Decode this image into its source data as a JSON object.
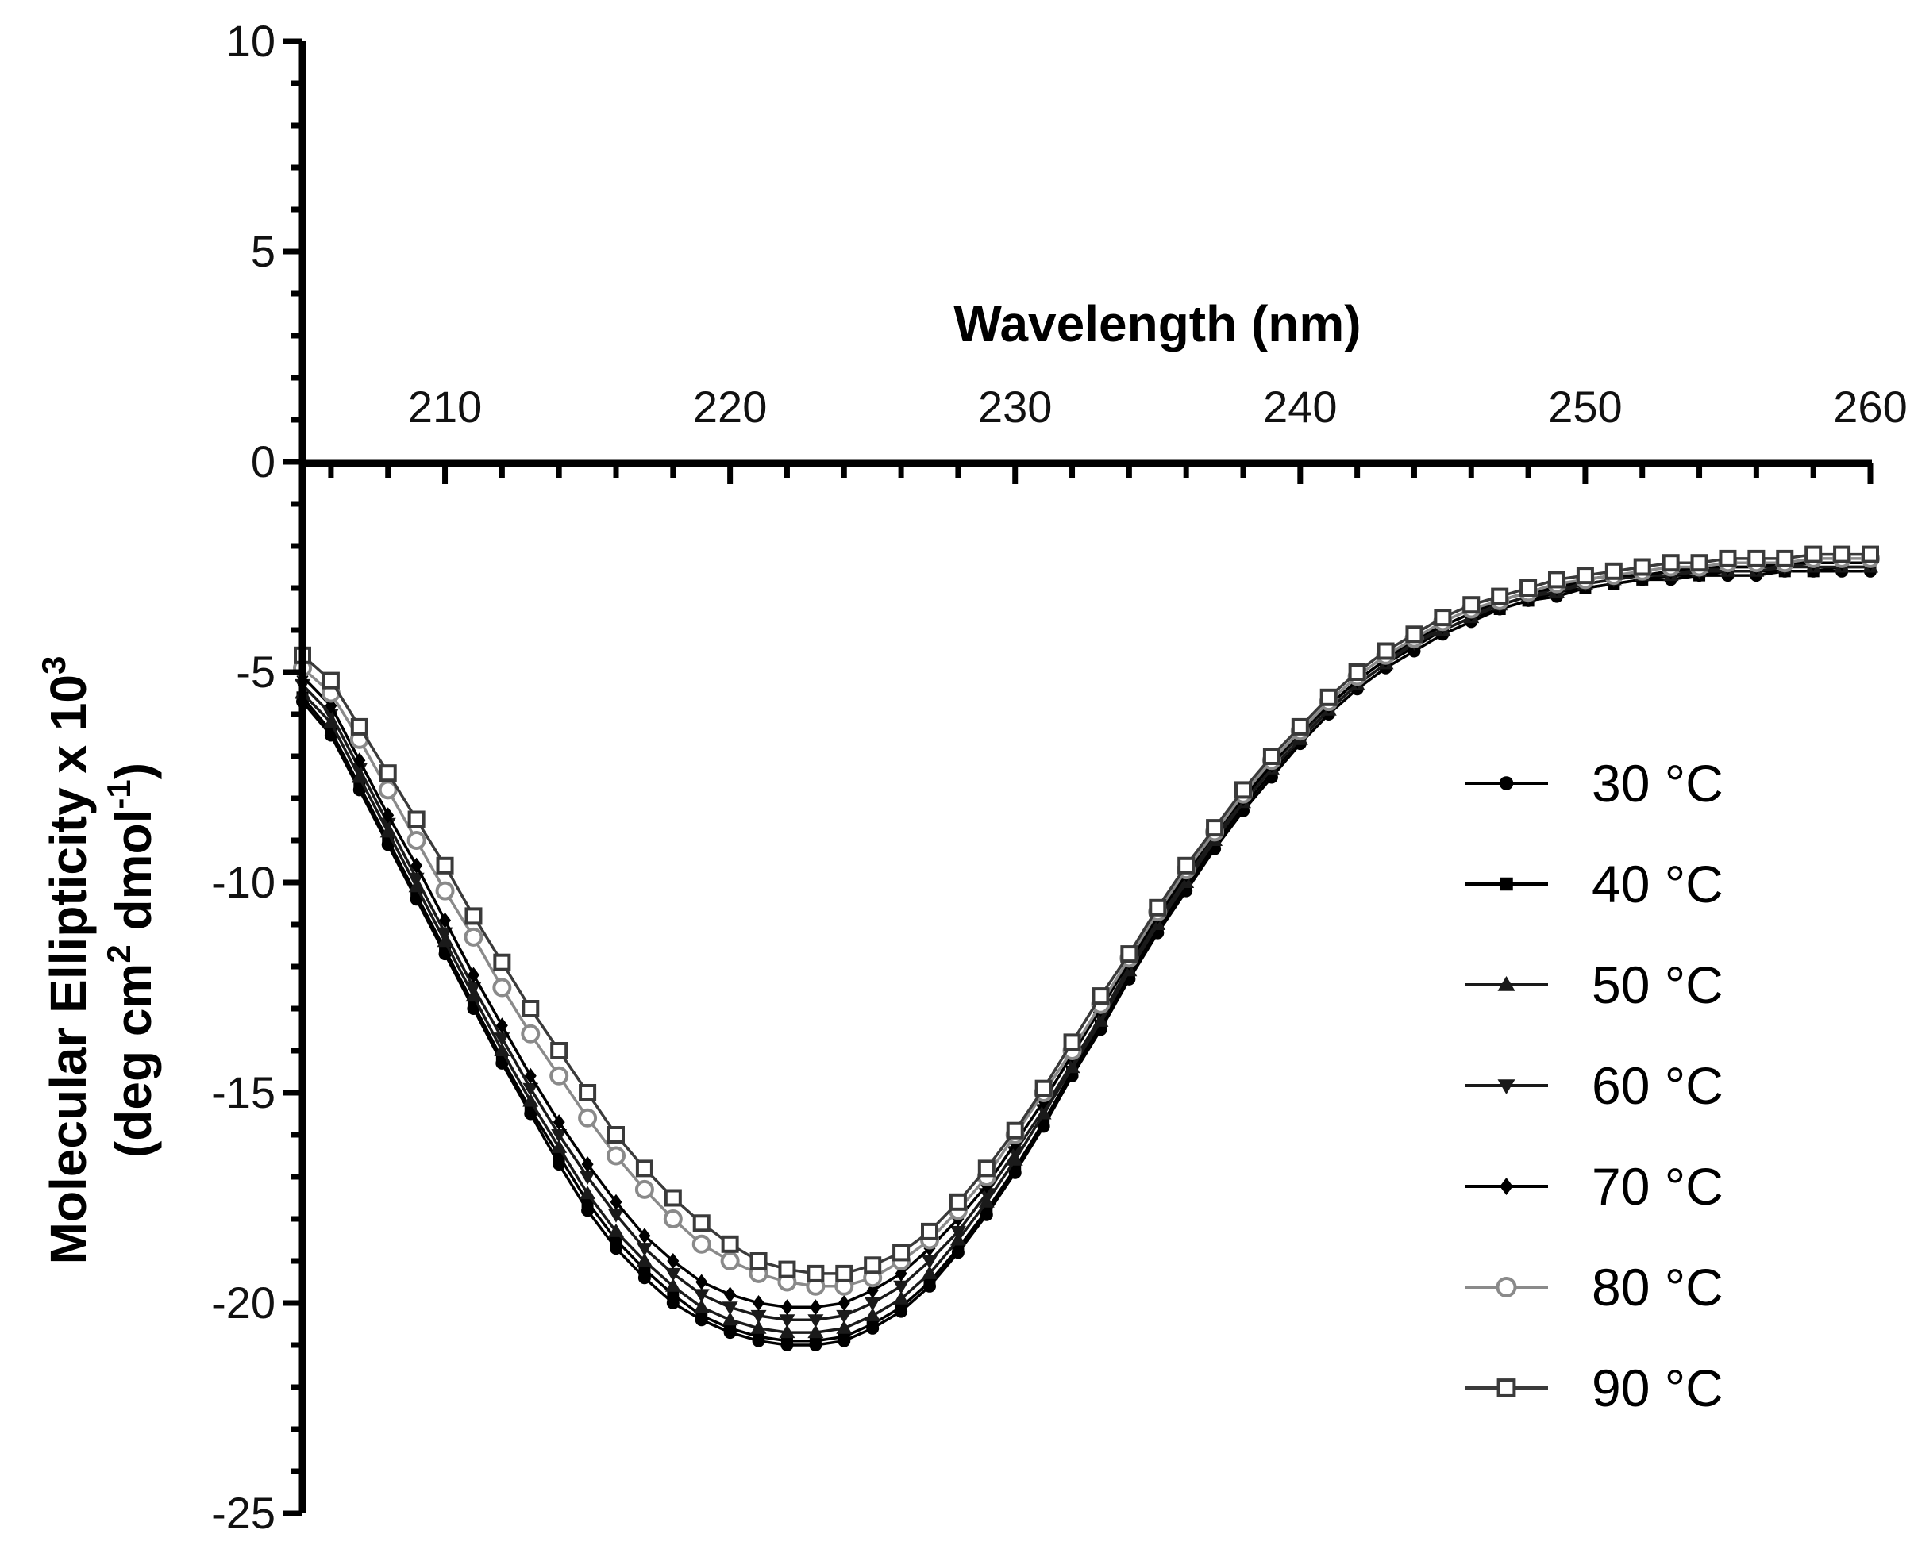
{
  "chart_data": {
    "type": "line",
    "title": "",
    "xlabel": "Wavelength (nm)",
    "ylabel_line1": "Molecular Ellipticity x 10",
    "ylabel_exp": "3",
    "ylabel_line2_a": "(deg cm",
    "ylabel_line2_sup1": "2",
    "ylabel_line2_b": " dmol",
    "ylabel_line2_sup2": "-1",
    "ylabel_line2_c": ")",
    "xlim": [
      205,
      260
    ],
    "ylim": [
      -25,
      10
    ],
    "xticks": [
      210,
      220,
      230,
      240,
      250,
      260
    ],
    "yticks": [
      10,
      5,
      0,
      -5,
      -10,
      -15,
      -20,
      -25
    ],
    "x": [
      205,
      206,
      207,
      208,
      209,
      210,
      211,
      212,
      213,
      214,
      215,
      216,
      217,
      218,
      219,
      220,
      221,
      222,
      223,
      224,
      225,
      226,
      227,
      228,
      229,
      230,
      231,
      232,
      233,
      234,
      235,
      236,
      237,
      238,
      239,
      240,
      241,
      242,
      243,
      244,
      245,
      246,
      247,
      248,
      249,
      250,
      251,
      252,
      253,
      254,
      255,
      256,
      257,
      258,
      259,
      260
    ],
    "series": [
      {
        "name": "30 °C",
        "marker": "circle",
        "values": [
          -5.7,
          -6.5,
          -7.8,
          -9.1,
          -10.4,
          -11.7,
          -13.0,
          -14.3,
          -15.5,
          -16.7,
          -17.8,
          -18.7,
          -19.4,
          -20.0,
          -20.4,
          -20.7,
          -20.9,
          -21.0,
          -21.0,
          -20.9,
          -20.6,
          -20.2,
          -19.6,
          -18.8,
          -17.9,
          -16.9,
          -15.8,
          -14.6,
          -13.5,
          -12.3,
          -11.2,
          -10.2,
          -9.2,
          -8.3,
          -7.5,
          -6.7,
          -6.0,
          -5.4,
          -4.9,
          -4.5,
          -4.1,
          -3.8,
          -3.5,
          -3.3,
          -3.2,
          -3.0,
          -2.9,
          -2.8,
          -2.8,
          -2.7,
          -2.7,
          -2.7,
          -2.6,
          -2.6,
          -2.6,
          -2.6
        ]
      },
      {
        "name": "40 °C",
        "marker": "square-filled",
        "values": [
          -5.6,
          -6.4,
          -7.7,
          -9.0,
          -10.3,
          -11.6,
          -12.9,
          -14.2,
          -15.4,
          -16.5,
          -17.6,
          -18.5,
          -19.2,
          -19.8,
          -20.3,
          -20.6,
          -20.8,
          -20.9,
          -20.9,
          -20.8,
          -20.5,
          -20.1,
          -19.5,
          -18.7,
          -17.8,
          -16.8,
          -15.7,
          -14.5,
          -13.4,
          -12.2,
          -11.1,
          -10.1,
          -9.1,
          -8.2,
          -7.4,
          -6.6,
          -5.9,
          -5.3,
          -4.8,
          -4.4,
          -4.0,
          -3.7,
          -3.5,
          -3.3,
          -3.1,
          -3.0,
          -2.9,
          -2.8,
          -2.7,
          -2.7,
          -2.6,
          -2.6,
          -2.6,
          -2.6,
          -2.5,
          -2.5
        ]
      },
      {
        "name": "50 °C",
        "marker": "triangle-up",
        "values": [
          -5.5,
          -6.2,
          -7.5,
          -8.8,
          -10.1,
          -11.4,
          -12.7,
          -14.0,
          -15.2,
          -16.3,
          -17.4,
          -18.3,
          -19.0,
          -19.6,
          -20.1,
          -20.4,
          -20.6,
          -20.7,
          -20.7,
          -20.6,
          -20.3,
          -19.9,
          -19.3,
          -18.5,
          -17.6,
          -16.6,
          -15.5,
          -14.4,
          -13.3,
          -12.1,
          -11.0,
          -10.0,
          -9.0,
          -8.1,
          -7.3,
          -6.6,
          -5.9,
          -5.3,
          -4.8,
          -4.3,
          -4.0,
          -3.7,
          -3.4,
          -3.2,
          -3.1,
          -2.9,
          -2.8,
          -2.7,
          -2.7,
          -2.6,
          -2.6,
          -2.6,
          -2.5,
          -2.5,
          -2.5,
          -2.5
        ]
      },
      {
        "name": "60 °C",
        "marker": "triangle-down",
        "values": [
          -5.3,
          -6.0,
          -7.3,
          -8.6,
          -9.9,
          -11.2,
          -12.5,
          -13.7,
          -14.9,
          -16.0,
          -17.0,
          -17.9,
          -18.7,
          -19.3,
          -19.8,
          -20.1,
          -20.3,
          -20.4,
          -20.4,
          -20.3,
          -20.0,
          -19.6,
          -19.0,
          -18.3,
          -17.4,
          -16.4,
          -15.4,
          -14.3,
          -13.2,
          -12.0,
          -10.9,
          -9.9,
          -8.9,
          -8.0,
          -7.2,
          -6.5,
          -5.8,
          -5.2,
          -4.7,
          -4.3,
          -3.9,
          -3.6,
          -3.4,
          -3.2,
          -3.0,
          -2.9,
          -2.8,
          -2.7,
          -2.6,
          -2.6,
          -2.5,
          -2.5,
          -2.5,
          -2.4,
          -2.4,
          -2.4
        ]
      },
      {
        "name": "70 °C",
        "marker": "diamond",
        "values": [
          -5.1,
          -5.8,
          -7.1,
          -8.4,
          -9.6,
          -10.9,
          -12.2,
          -13.4,
          -14.6,
          -15.7,
          -16.7,
          -17.6,
          -18.4,
          -19.0,
          -19.5,
          -19.8,
          -20.0,
          -20.1,
          -20.1,
          -20.0,
          -19.7,
          -19.3,
          -18.7,
          -18.0,
          -17.2,
          -16.2,
          -15.2,
          -14.1,
          -13.0,
          -11.9,
          -10.8,
          -9.8,
          -8.8,
          -8.0,
          -7.2,
          -6.4,
          -5.8,
          -5.2,
          -4.7,
          -4.2,
          -3.9,
          -3.6,
          -3.3,
          -3.1,
          -3.0,
          -2.8,
          -2.7,
          -2.7,
          -2.6,
          -2.5,
          -2.5,
          -2.5,
          -2.4,
          -2.4,
          -2.4,
          -2.4
        ]
      },
      {
        "name": "80 °C",
        "marker": "circle-open",
        "values": [
          -4.9,
          -5.5,
          -6.6,
          -7.8,
          -9.0,
          -10.2,
          -11.3,
          -12.5,
          -13.6,
          -14.6,
          -15.6,
          -16.5,
          -17.3,
          -18.0,
          -18.6,
          -19.0,
          -19.3,
          -19.5,
          -19.6,
          -19.6,
          -19.4,
          -19.0,
          -18.5,
          -17.8,
          -17.0,
          -16.0,
          -15.0,
          -14.0,
          -12.9,
          -11.8,
          -10.7,
          -9.7,
          -8.8,
          -7.9,
          -7.1,
          -6.4,
          -5.7,
          -5.1,
          -4.6,
          -4.2,
          -3.8,
          -3.5,
          -3.3,
          -3.1,
          -2.9,
          -2.8,
          -2.7,
          -2.6,
          -2.5,
          -2.5,
          -2.4,
          -2.4,
          -2.4,
          -2.3,
          -2.3,
          -2.3
        ]
      },
      {
        "name": "90 °C",
        "marker": "square-open",
        "values": [
          -4.6,
          -5.2,
          -6.3,
          -7.4,
          -8.5,
          -9.6,
          -10.8,
          -11.9,
          -13.0,
          -14.0,
          -15.0,
          -16.0,
          -16.8,
          -17.5,
          -18.1,
          -18.6,
          -19.0,
          -19.2,
          -19.3,
          -19.3,
          -19.1,
          -18.8,
          -18.3,
          -17.6,
          -16.8,
          -15.9,
          -14.9,
          -13.8,
          -12.7,
          -11.7,
          -10.6,
          -9.6,
          -8.7,
          -7.8,
          -7.0,
          -6.3,
          -5.6,
          -5.0,
          -4.5,
          -4.1,
          -3.7,
          -3.4,
          -3.2,
          -3.0,
          -2.8,
          -2.7,
          -2.6,
          -2.5,
          -2.4,
          -2.4,
          -2.3,
          -2.3,
          -2.3,
          -2.2,
          -2.2,
          -2.2
        ]
      }
    ],
    "legend_position": "right",
    "grid": false
  },
  "colors": {
    "axis": "#000000",
    "series": [
      "#000000",
      "#000000",
      "#1a1a1a",
      "#1a1a1a",
      "#000000",
      "#8a8a8a",
      "#3a3a3a"
    ]
  }
}
